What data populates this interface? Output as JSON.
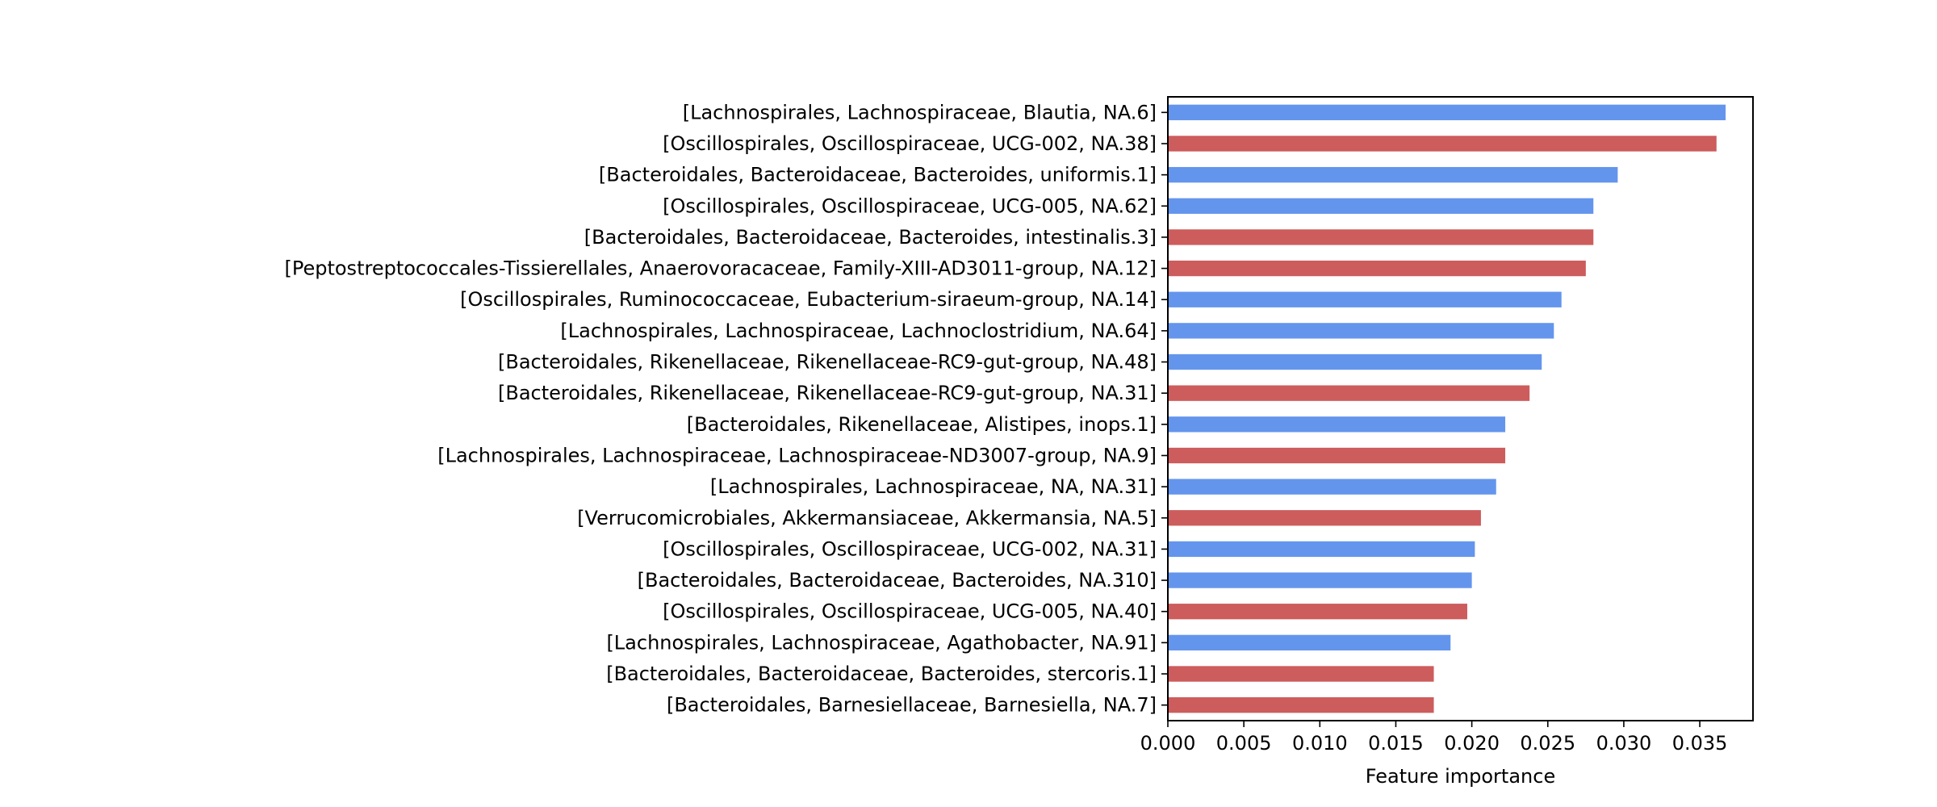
{
  "chart_data": {
    "type": "bar",
    "orientation": "horizontal",
    "xlabel": "Feature importance",
    "xlim": [
      0,
      0.0385
    ],
    "xticks": [
      "0.000",
      "0.005",
      "0.010",
      "0.015",
      "0.020",
      "0.025",
      "0.030",
      "0.035"
    ],
    "colors": {
      "blue": "#6495ED",
      "red": "#CD5C5C"
    },
    "bars": [
      {
        "label": "[Lachnospirales, Lachnospiraceae, Blautia, NA.6]",
        "value": 0.0367,
        "color": "blue"
      },
      {
        "label": "[Oscillospirales, Oscillospiraceae, UCG-002, NA.38]",
        "value": 0.0361,
        "color": "red"
      },
      {
        "label": "[Bacteroidales, Bacteroidaceae, Bacteroides, uniformis.1]",
        "value": 0.0296,
        "color": "blue"
      },
      {
        "label": "[Oscillospirales, Oscillospiraceae, UCG-005, NA.62]",
        "value": 0.028,
        "color": "blue"
      },
      {
        "label": "[Bacteroidales, Bacteroidaceae, Bacteroides, intestinalis.3]",
        "value": 0.028,
        "color": "red"
      },
      {
        "label": "[Peptostreptococcales-Tissierellales, Anaerovoracaceae, Family-XIII-AD3011-group, NA.12]",
        "value": 0.0275,
        "color": "red"
      },
      {
        "label": "[Oscillospirales, Ruminococcaceae, Eubacterium-siraeum-group, NA.14]",
        "value": 0.0259,
        "color": "blue"
      },
      {
        "label": "[Lachnospirales, Lachnospiraceae, Lachnoclostridium, NA.64]",
        "value": 0.0254,
        "color": "blue"
      },
      {
        "label": "[Bacteroidales, Rikenellaceae, Rikenellaceae-RC9-gut-group, NA.48]",
        "value": 0.0246,
        "color": "blue"
      },
      {
        "label": "[Bacteroidales, Rikenellaceae, Rikenellaceae-RC9-gut-group, NA.31]",
        "value": 0.0238,
        "color": "red"
      },
      {
        "label": "[Bacteroidales, Rikenellaceae, Alistipes, inops.1]",
        "value": 0.0222,
        "color": "blue"
      },
      {
        "label": "[Lachnospirales, Lachnospiraceae, Lachnospiraceae-ND3007-group, NA.9]",
        "value": 0.0222,
        "color": "red"
      },
      {
        "label": "[Lachnospirales, Lachnospiraceae, NA, NA.31]",
        "value": 0.0216,
        "color": "blue"
      },
      {
        "label": "[Verrucomicrobiales, Akkermansiaceae, Akkermansia, NA.5]",
        "value": 0.0206,
        "color": "red"
      },
      {
        "label": "[Oscillospirales, Oscillospiraceae, UCG-002, NA.31]",
        "value": 0.0202,
        "color": "blue"
      },
      {
        "label": "[Bacteroidales, Bacteroidaceae, Bacteroides, NA.310]",
        "value": 0.02,
        "color": "blue"
      },
      {
        "label": "[Oscillospirales, Oscillospiraceae, UCG-005, NA.40]",
        "value": 0.0197,
        "color": "red"
      },
      {
        "label": "[Lachnospirales, Lachnospiraceae, Agathobacter, NA.91]",
        "value": 0.0186,
        "color": "blue"
      },
      {
        "label": "[Bacteroidales, Bacteroidaceae, Bacteroides, stercoris.1]",
        "value": 0.0175,
        "color": "red"
      },
      {
        "label": "[Bacteroidales, Barnesiellaceae, Barnesiella, NA.7]",
        "value": 0.0175,
        "color": "red"
      }
    ]
  }
}
